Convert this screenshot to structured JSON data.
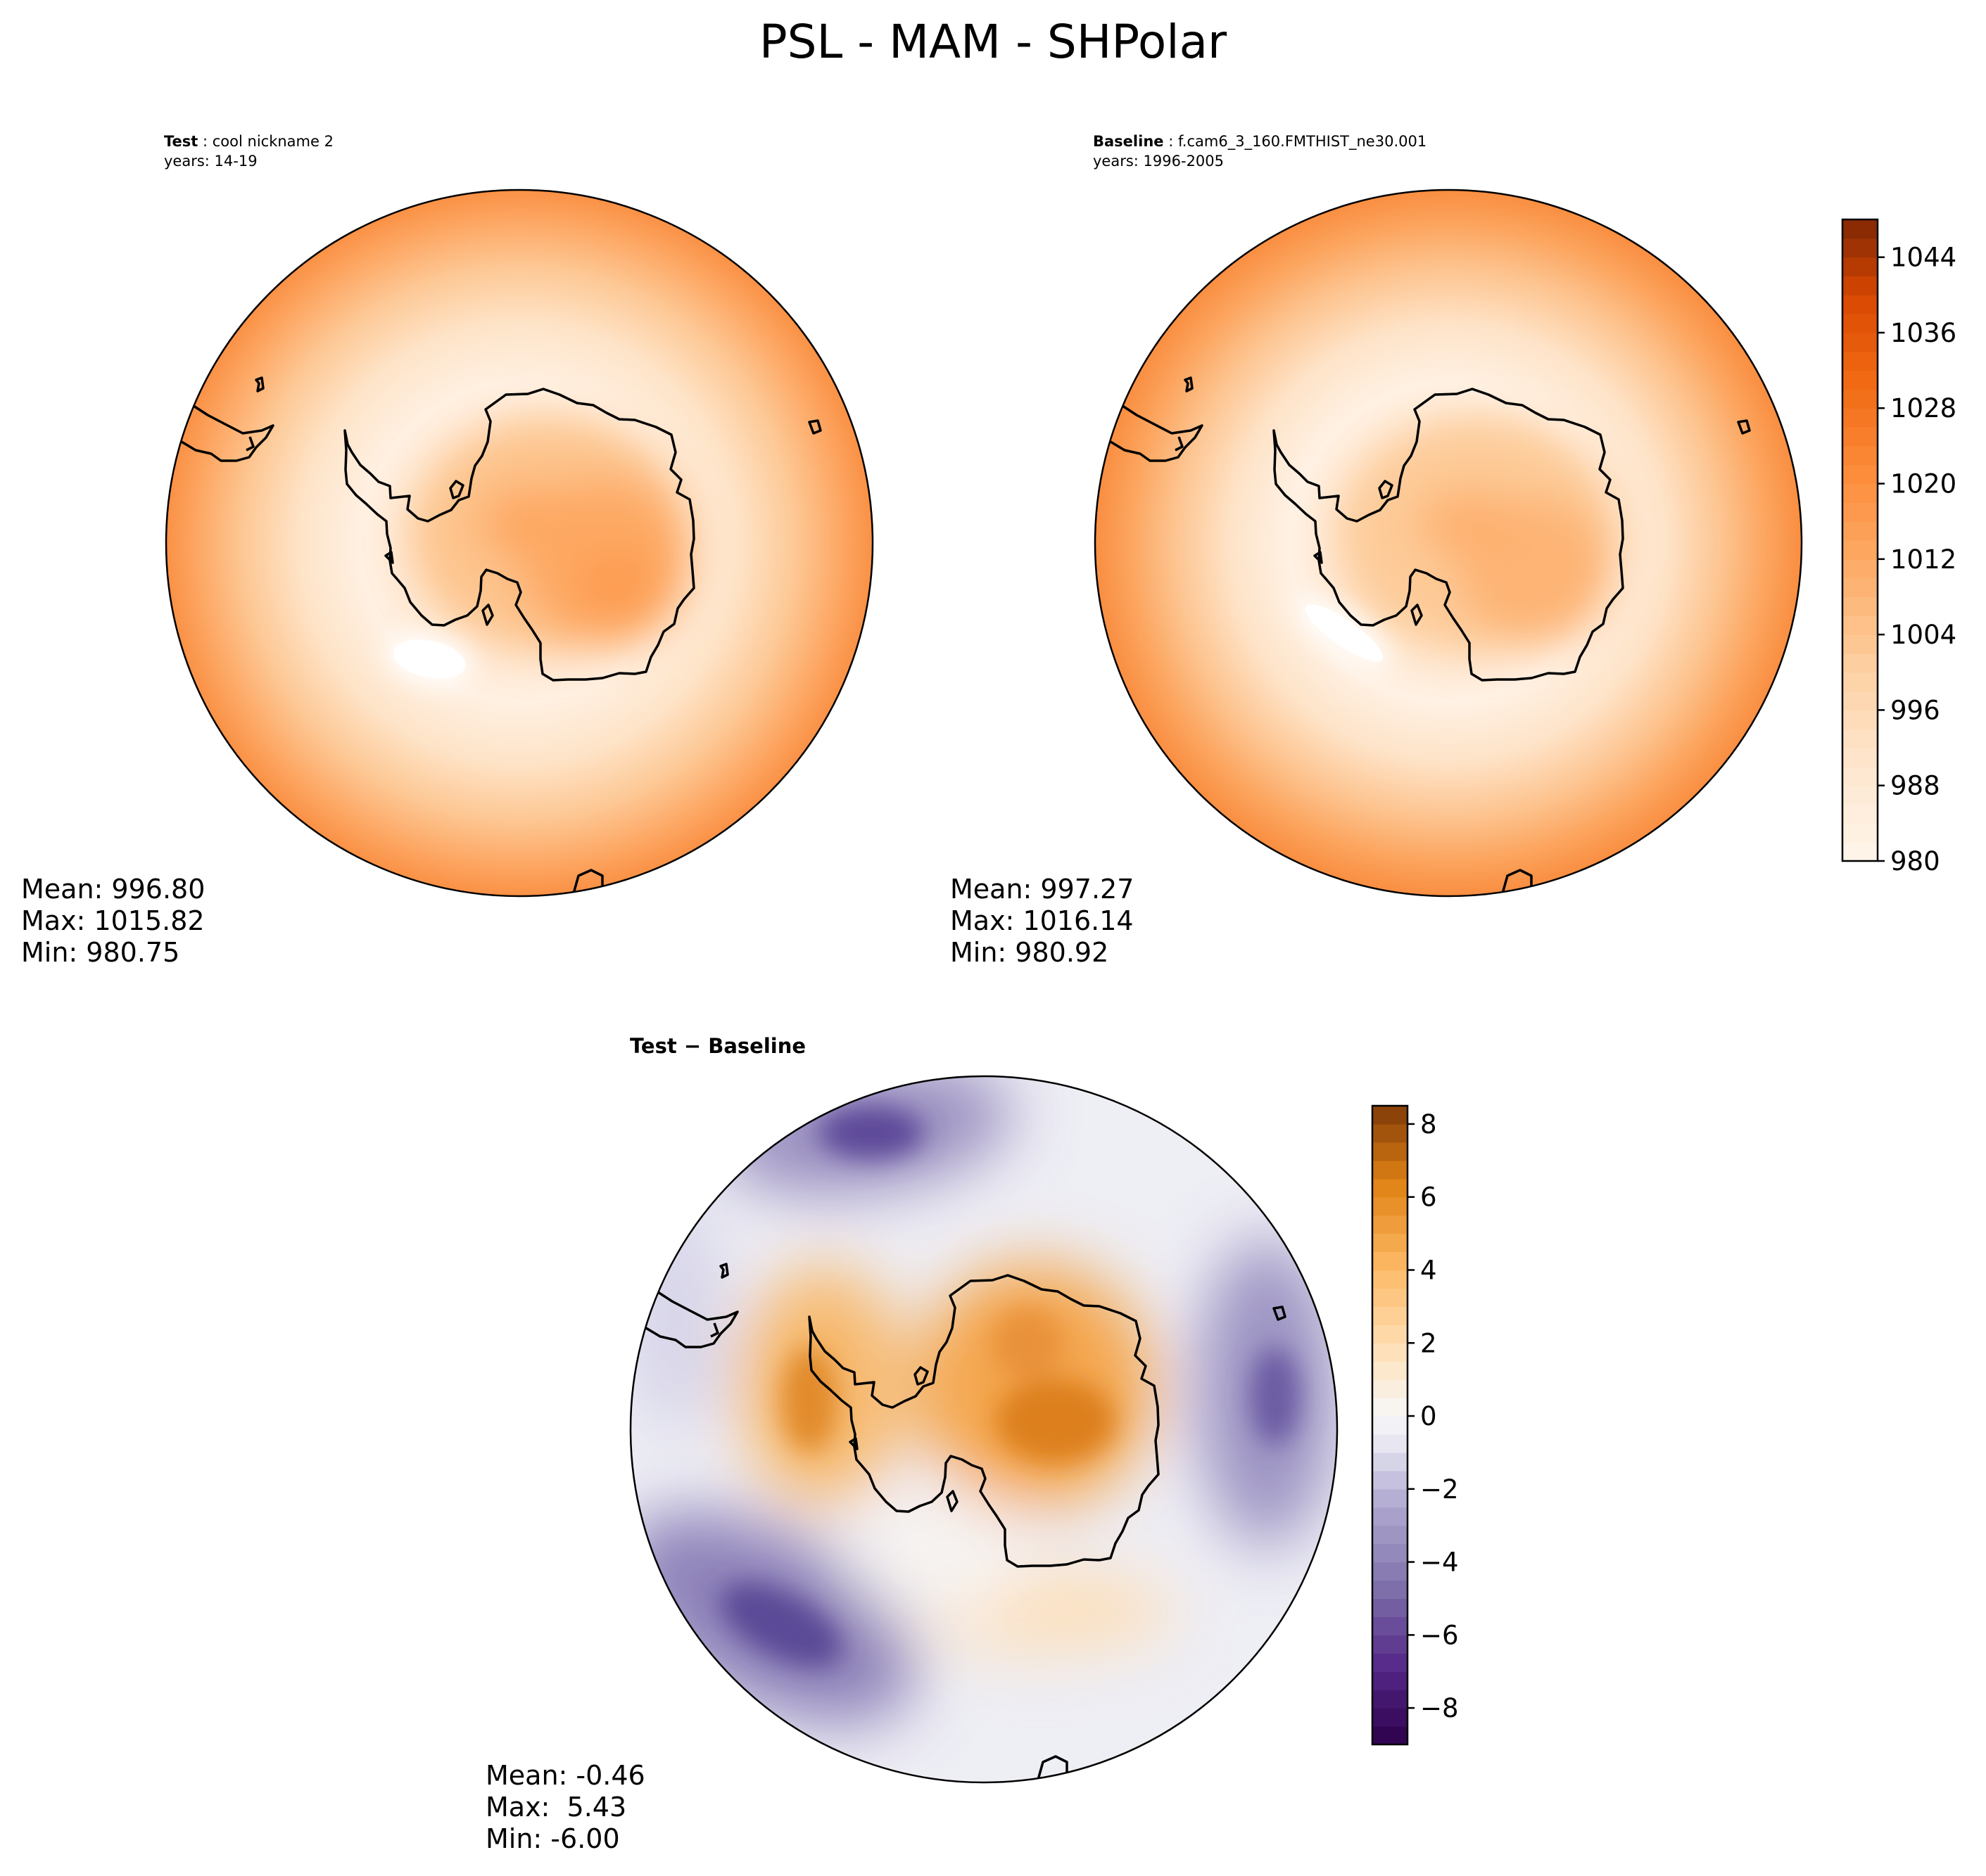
{
  "figure": {
    "title": "PSL - MAM - SHPolar"
  },
  "chart_data": [
    {
      "type": "heatmap",
      "projection": "south-polar-stereographic",
      "panel": "test",
      "label_bold": "Test",
      "label_rest": " : cool nickname 2",
      "years": "years: 14-19",
      "stats": {
        "mean": "Mean: 996.80",
        "max": "Max: 1015.82",
        "min": "Min: 980.75"
      },
      "colormap": "Oranges",
      "range": [
        980,
        1048
      ]
    },
    {
      "type": "heatmap",
      "projection": "south-polar-stereographic",
      "panel": "baseline",
      "label_bold": "Baseline",
      "label_rest": " : f.cam6_3_160.FMTHIST_ne30.001",
      "years": "years: 1996-2005",
      "stats": {
        "mean": "Mean: 997.27",
        "max": "Max: 1016.14",
        "min": "Min: 980.92"
      },
      "colormap": "Oranges",
      "range": [
        980,
        1048
      ],
      "colorbar": {
        "ticks": [
          980,
          988,
          996,
          1004,
          1012,
          1020,
          1028,
          1036,
          1044
        ],
        "tick_labels": [
          "980",
          "988",
          "996",
          "1004",
          "1012",
          "1020",
          "1028",
          "1036",
          "1044"
        ],
        "levels": 34
      }
    },
    {
      "type": "heatmap",
      "projection": "south-polar-stereographic",
      "panel": "difference",
      "label_bold": "Test − Baseline",
      "stats": {
        "mean": "Mean: -0.46",
        "max": "Max:  5.43",
        "min": "Min: -6.00"
      },
      "colormap": "PuOr_r",
      "range": [
        -9,
        8.5
      ],
      "colorbar": {
        "ticks": [
          -8,
          -6,
          -4,
          -2,
          0,
          2,
          4,
          6,
          8
        ],
        "tick_labels": [
          "−8",
          "−6",
          "−4",
          "−2",
          "0",
          "2",
          "4",
          "6",
          "8"
        ],
        "levels": 35
      }
    }
  ]
}
